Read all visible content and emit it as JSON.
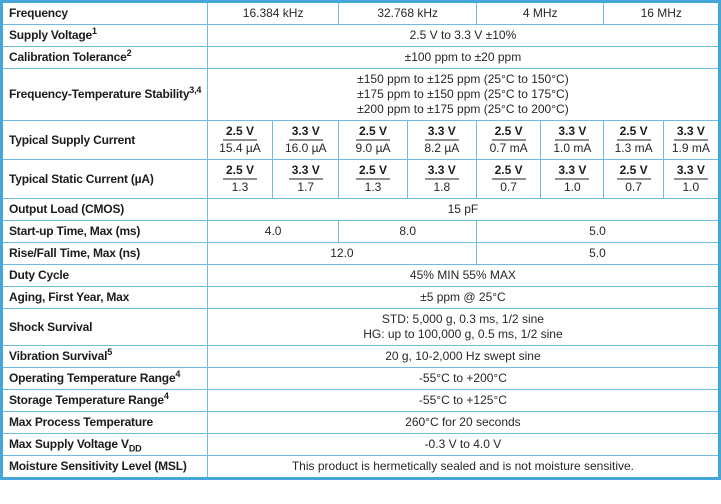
{
  "colors": {
    "outer_border": "#45a6d9",
    "inner_border": "#6fbbe3",
    "label_text": "#1c1c1f",
    "value_text": "#27272a",
    "underline_gray": "#8f8f8f"
  },
  "table": {
    "rows": [
      {
        "label": "Frequency",
        "cells": [
          {
            "text": "16.384 kHz",
            "span": 2
          },
          {
            "text": "32.768 kHz",
            "span": 2
          },
          {
            "text": "4 MHz",
            "span": 2
          },
          {
            "text": "16 MHz",
            "span": 2
          }
        ]
      },
      {
        "label": "Supply Voltage",
        "sup": "1",
        "cells": [
          {
            "text": "2.5 V to 3.3 V ±10%",
            "span": 8
          }
        ]
      },
      {
        "label": "Calibration Tolerance",
        "sup": "2",
        "cells": [
          {
            "text": "±100 ppm to ±20 ppm",
            "span": 8
          }
        ]
      },
      {
        "label": "Frequency-Temperature Stability",
        "sup": "3,4",
        "cells": [
          {
            "lines": [
              "±150 ppm to ±125 ppm (25°C to 150°C)",
              "±175 ppm to ±150 ppm (25°C to 175°C)",
              "±200 ppm to ±175 ppm (25°C to 200°C)"
            ],
            "span": 8
          }
        ]
      },
      {
        "label": "Typical Supply Current",
        "cells": [
          {
            "head": "2.5 V",
            "value": "15.4 µA",
            "span": 1
          },
          {
            "head": "3.3 V",
            "value": "16.0 µA",
            "span": 1
          },
          {
            "head": "2.5 V",
            "value": "9.0 µA",
            "span": 1
          },
          {
            "head": "3.3 V",
            "value": "8.2 µA",
            "span": 1
          },
          {
            "head": "2.5 V",
            "value": "0.7 mA",
            "span": 1
          },
          {
            "head": "3.3 V",
            "value": "1.0 mA",
            "span": 1
          },
          {
            "head": "2.5 V",
            "value": "1.3 mA",
            "span": 1
          },
          {
            "head": "3.3 V",
            "value": "1.9 mA",
            "span": 1
          }
        ]
      },
      {
        "label": "Typical Static Current (µA)",
        "cells": [
          {
            "head": "2.5 V",
            "value": "1.3",
            "span": 1
          },
          {
            "head": "3.3 V",
            "value": "1.7",
            "span": 1
          },
          {
            "head": "2.5 V",
            "value": "1.3",
            "span": 1
          },
          {
            "head": "3.3 V",
            "value": "1.8",
            "span": 1
          },
          {
            "head": "2.5 V",
            "value": "0.7",
            "span": 1
          },
          {
            "head": "3.3 V",
            "value": "1.0",
            "span": 1
          },
          {
            "head": "2.5 V",
            "value": "0.7",
            "span": 1
          },
          {
            "head": "3.3 V",
            "value": "1.0",
            "span": 1
          }
        ]
      },
      {
        "label": "Output Load (CMOS)",
        "cells": [
          {
            "text": "15 pF",
            "span": 8
          }
        ]
      },
      {
        "label": "Start-up Time, Max (ms)",
        "cells": [
          {
            "text": "4.0",
            "span": 2
          },
          {
            "text": "8.0",
            "span": 2
          },
          {
            "text": "5.0",
            "span": 4
          }
        ]
      },
      {
        "label": "Rise/Fall Time, Max (ns)",
        "cells": [
          {
            "text": "12.0",
            "span": 4
          },
          {
            "text": "5.0",
            "span": 4
          }
        ]
      },
      {
        "label": "Duty Cycle",
        "cells": [
          {
            "text": "45% MIN 55% MAX",
            "span": 8
          }
        ]
      },
      {
        "label": "Aging, First Year, Max",
        "cells": [
          {
            "text": "±5 ppm @ 25°C",
            "span": 8
          }
        ]
      },
      {
        "label": "Shock Survival",
        "cells": [
          {
            "lines": [
              "STD: 5,000 g, 0.3 ms, 1/2 sine",
              "HG: up to 100,000 g, 0.5 ms, 1/2 sine"
            ],
            "span": 8
          }
        ]
      },
      {
        "label": "Vibration Survival",
        "sup": "5",
        "cells": [
          {
            "text": "20 g, 10-2,000 Hz swept sine",
            "span": 8
          }
        ]
      },
      {
        "label": "Operating Temperature Range",
        "sup": "4",
        "cells": [
          {
            "text": "-55°C to +200°C",
            "span": 8
          }
        ]
      },
      {
        "label": "Storage Temperature Range",
        "sup": "4",
        "cells": [
          {
            "text": "-55°C to +125°C",
            "span": 8
          }
        ]
      },
      {
        "label": "Max Process Temperature",
        "cells": [
          {
            "text": "260°C for 20 seconds",
            "span": 8
          }
        ]
      },
      {
        "label": "Max Supply Voltage V",
        "sub": "DD",
        "cells": [
          {
            "text": "-0.3 V to 4.0 V",
            "span": 8
          }
        ]
      },
      {
        "label": "Moisture Sensitivity Level (MSL)",
        "cells": [
          {
            "text": "This product is hermetically sealed and is not moisture sensitive.",
            "span": 8
          }
        ]
      }
    ]
  }
}
